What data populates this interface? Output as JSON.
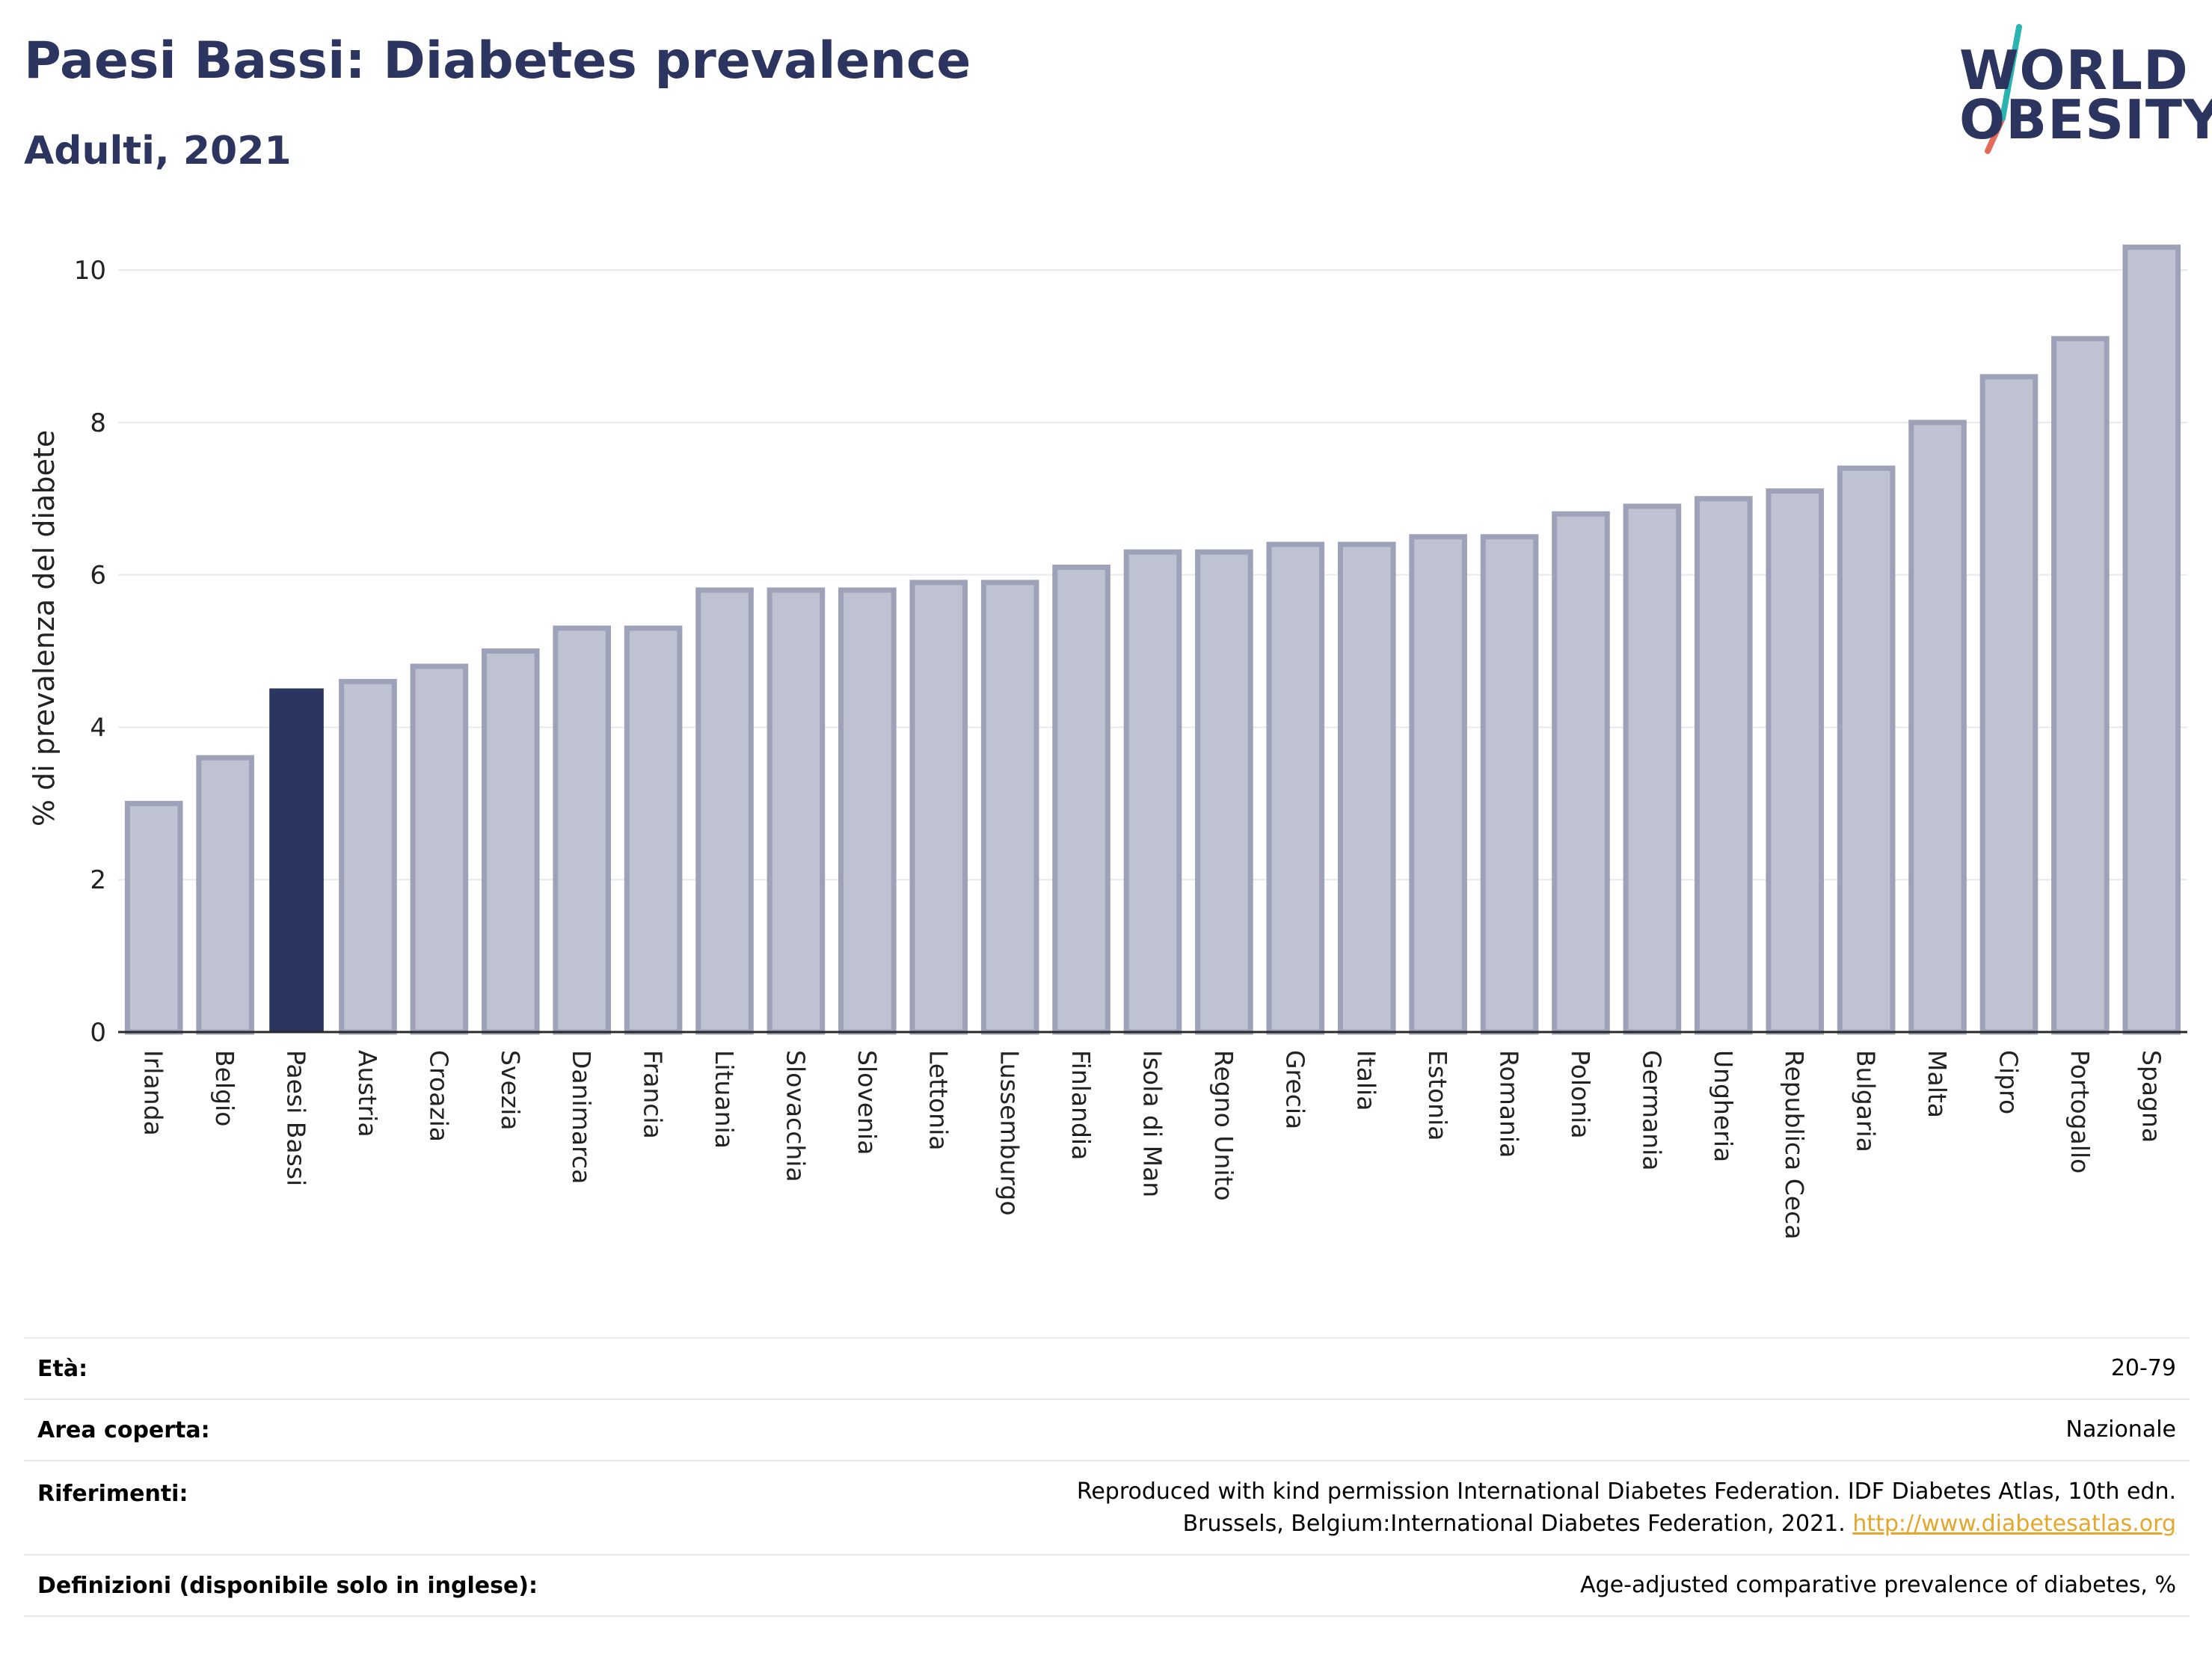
{
  "header": {
    "title": "Paesi Bassi: Diabetes prevalence",
    "subtitle": "Adulti, 2021"
  },
  "logo": {
    "line1": "WORLD",
    "line2": "OBESITY",
    "stripe_color_top": "#2ab3b1",
    "stripe_color_bottom": "#e36b5a"
  },
  "colors": {
    "highlight": "#2b3560",
    "bar_fill": "#bfc2d0",
    "bar_border": "#9da2b8",
    "grid": "#e8e9ee",
    "axis": "#2b2b2b"
  },
  "chart_data": {
    "type": "bar",
    "ylabel": "% di prevalenza del diabete",
    "xlabel": "",
    "ylim": [
      0,
      10.6
    ],
    "yticks": [
      0,
      2,
      4,
      6,
      8,
      10
    ],
    "grid": true,
    "highlight": "Paesi Bassi",
    "categories": [
      "Irlanda",
      "Belgio",
      "Paesi Bassi",
      "Austria",
      "Croazia",
      "Svezia",
      "Danimarca",
      "Francia",
      "Lituania",
      "Slovacchia",
      "Slovenia",
      "Lettonia",
      "Lussemburgo",
      "Finlandia",
      "Isola di Man",
      "Regno Unito",
      "Grecia",
      "Italia",
      "Estonia",
      "Romania",
      "Polonia",
      "Germania",
      "Ungheria",
      "Republica Ceca",
      "Bulgaria",
      "Malta",
      "Cipro",
      "Portogallo",
      "Spagna"
    ],
    "values": [
      3.0,
      3.6,
      4.5,
      4.6,
      4.8,
      5.0,
      5.3,
      5.3,
      5.8,
      5.8,
      5.8,
      5.9,
      5.9,
      6.1,
      6.3,
      6.3,
      6.4,
      6.4,
      6.5,
      6.5,
      6.8,
      6.9,
      7.0,
      7.1,
      7.4,
      8.0,
      8.6,
      9.1,
      10.3
    ]
  },
  "info": {
    "rows": [
      {
        "label": "Età:",
        "value": "20-79"
      },
      {
        "label": "Area coperta:",
        "value": "Nazionale"
      },
      {
        "label": "Riferimenti:",
        "value": "Reproduced with kind permission International Diabetes Federation.  IDF Diabetes Atlas, 10th edn. Brussels, Belgium:International Diabetes Federation, 2021.",
        "link": "http://www.diabetesatlas.org"
      },
      {
        "label": "Definizioni (disponibile solo in inglese):",
        "value": "Age-adjusted comparative prevalence of diabetes, %"
      }
    ]
  }
}
